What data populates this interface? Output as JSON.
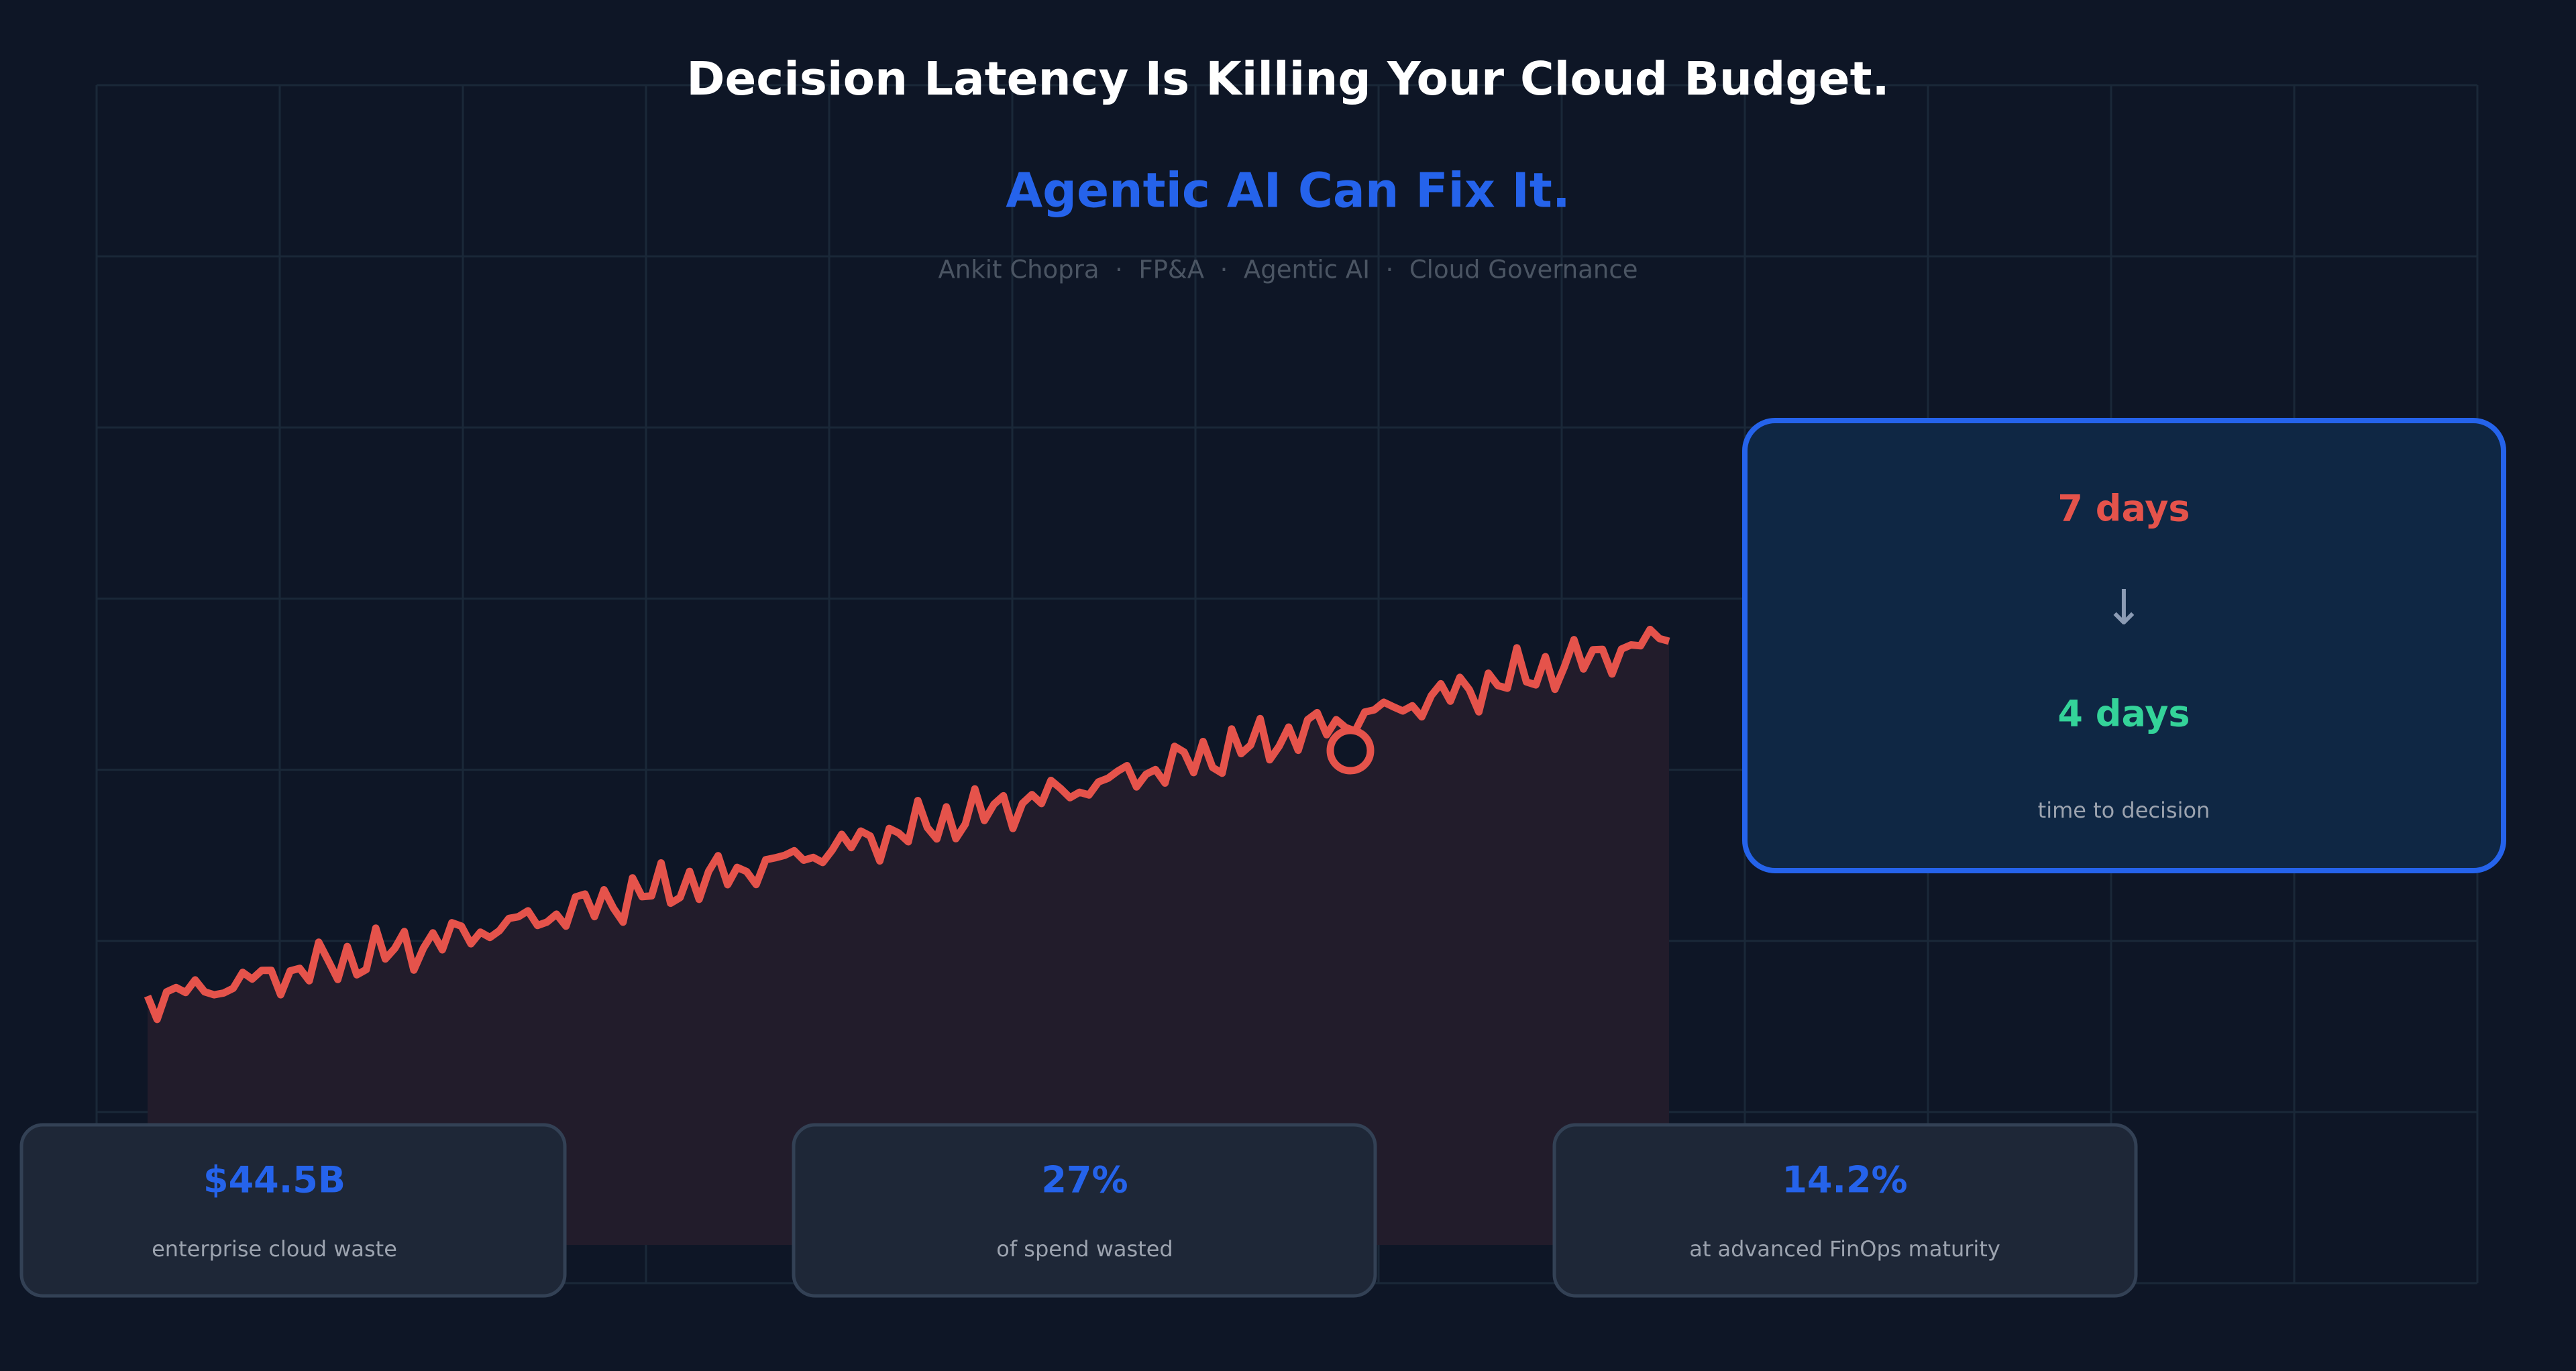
{
  "header": {
    "title": "Decision Latency Is Killing Your Cloud Budget.",
    "subtitle": "Agentic AI Can Fix It.",
    "byline": "Ankit Chopra  ·  FP&A  ·  Agentic AI  ·  Cloud Governance"
  },
  "highlight": {
    "from": "7 days",
    "arrow": "↓",
    "to": "4 days",
    "caption": "time to decision"
  },
  "stats": [
    {
      "value": "$44.5B",
      "label": "enterprise cloud waste"
    },
    {
      "value": "27%",
      "label": "of spend wasted"
    },
    {
      "value": "14.2%",
      "label": "at advanced FinOps maturity"
    }
  ]
}
